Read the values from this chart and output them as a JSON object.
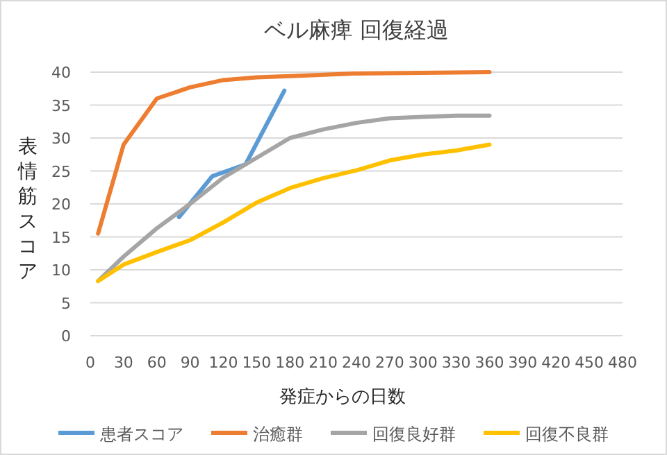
{
  "chart_data": {
    "type": "line",
    "title": "ベル麻痺 回復経過",
    "xlabel": "発症からの日数",
    "ylabel": "表情筋スコア",
    "xlim": [
      0,
      480
    ],
    "xticks": [
      0,
      30,
      60,
      90,
      120,
      150,
      180,
      210,
      240,
      270,
      300,
      330,
      360,
      390,
      420,
      450,
      480
    ],
    "ylim": [
      0,
      40
    ],
    "yticks": [
      0,
      5,
      10,
      15,
      20,
      25,
      30,
      35,
      40
    ],
    "grid": "y",
    "legend": "bottom",
    "marker": "none",
    "line_style": "solid",
    "series": [
      {
        "name": "患者スコア",
        "color": "#5b9bd5",
        "x": [
          80,
          110,
          140,
          175
        ],
        "values": [
          18,
          24.2,
          26,
          37.2
        ]
      },
      {
        "name": "治癒群",
        "color": "#ed7d31",
        "x": [
          7,
          30,
          60,
          90,
          120,
          150,
          180,
          240,
          360
        ],
        "values": [
          15.5,
          29,
          36,
          37.7,
          38.8,
          39.2,
          39.4,
          39.8,
          40
        ]
      },
      {
        "name": "回復良好群",
        "color": "#a5a5a5",
        "x": [
          7,
          30,
          60,
          90,
          120,
          150,
          180,
          210,
          240,
          270,
          300,
          330,
          360
        ],
        "values": [
          8.3,
          12,
          16.3,
          20,
          24,
          27,
          30,
          31.3,
          32.3,
          33,
          33.2,
          33.4,
          33.4
        ]
      },
      {
        "name": "回復不良群",
        "color": "#ffc000",
        "x": [
          7,
          30,
          60,
          90,
          120,
          150,
          180,
          210,
          240,
          270,
          300,
          330,
          360
        ],
        "values": [
          8.3,
          10.8,
          12.7,
          14.5,
          17.2,
          20.2,
          22.4,
          23.9,
          25.1,
          26.6,
          27.5,
          28.1,
          29
        ]
      }
    ]
  }
}
